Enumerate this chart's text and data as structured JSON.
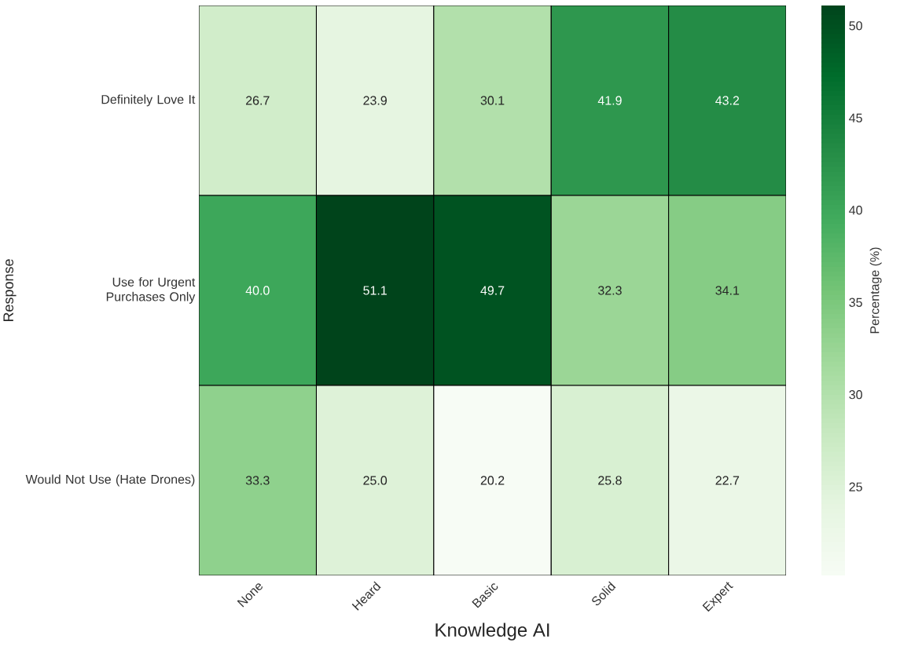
{
  "chart_data": {
    "type": "heatmap",
    "xlabel": "Knowledge AI",
    "ylabel": "Response",
    "clabel": "Percentage (%)",
    "categories": [
      "None",
      "Heard",
      "Basic",
      "Solid",
      "Expert"
    ],
    "y_categories": [
      "Definitely Love It",
      "Use for Urgent Purchases Only",
      "Would Not Use (Hate Drones)"
    ],
    "cells": [
      [
        26.7,
        23.9,
        30.1,
        41.9,
        43.2
      ],
      [
        40.0,
        51.1,
        49.7,
        32.3,
        34.1
      ],
      [
        33.3,
        25.0,
        20.2,
        25.8,
        22.7
      ]
    ],
    "cell_labels": [
      [
        "26.7",
        "23.9",
        "30.1",
        "41.9",
        "43.2"
      ],
      [
        "40.0",
        "51.1",
        "49.7",
        "32.3",
        "34.1"
      ],
      [
        "33.3",
        "25.0",
        "20.2",
        "25.8",
        "22.7"
      ]
    ],
    "data_labels": true,
    "clim": [
      20.2,
      51.1
    ],
    "cticks": [
      25,
      30,
      35,
      40,
      45,
      50
    ]
  }
}
